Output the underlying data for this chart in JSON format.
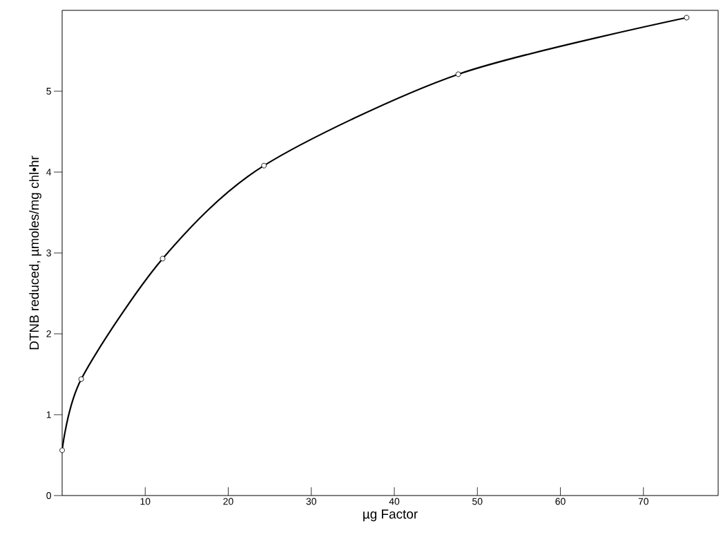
{
  "chart_data": {
    "type": "line",
    "xlabel": "µg Factor",
    "ylabel": "DTNB reduced, µmoles/mg chl•hr",
    "x": [
      0,
      2.3,
      12.1,
      24.3,
      47.7,
      75.2
    ],
    "values": [
      0.56,
      1.44,
      2.93,
      4.08,
      5.21,
      5.91
    ],
    "color": "#000000",
    "marker": "circle",
    "line_style": "solid",
    "xlim": [
      0,
      79
    ],
    "ylim": [
      0,
      6
    ],
    "xticks": [
      10,
      20,
      30,
      40,
      50,
      60,
      70
    ],
    "yticks": [
      0,
      1,
      2,
      3,
      4,
      5
    ]
  }
}
